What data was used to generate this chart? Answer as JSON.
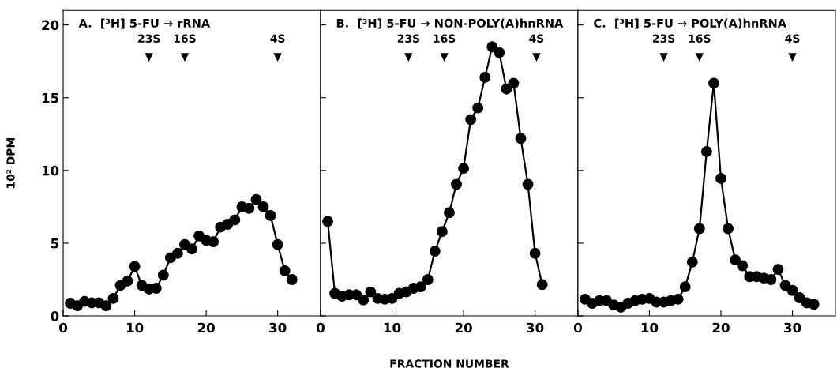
{
  "chart_data": [
    {
      "type": "line",
      "title": "A.  [³H] 5-FU → rRNA",
      "ylabel": "10² DPM",
      "tick_labels": "xy",
      "marker": "circle",
      "line_style": "solid",
      "grid": false,
      "legend": false,
      "x": [
        1,
        2,
        3,
        4,
        5,
        6,
        7,
        8,
        9,
        10,
        11,
        12,
        13,
        14,
        15,
        16,
        17,
        18,
        19,
        20,
        21,
        22,
        23,
        24,
        25,
        26,
        27,
        28,
        29,
        30,
        31,
        32
      ],
      "series": [
        {
          "color": "#000000",
          "values": [
            0.87,
            0.7,
            1.0,
            0.9,
            0.9,
            0.7,
            1.2,
            2.1,
            2.4,
            3.4,
            2.1,
            1.85,
            1.9,
            2.8,
            4.0,
            4.3,
            4.9,
            4.6,
            5.5,
            5.2,
            5.1,
            6.1,
            6.3,
            6.6,
            7.5,
            7.4,
            8.0,
            7.5,
            6.9,
            4.9,
            3.1,
            2.5
          ]
        }
      ],
      "xlim": [
        0,
        36
      ],
      "xticks": [
        0,
        10,
        20,
        30
      ],
      "ylim": [
        0,
        21
      ],
      "yticks": [
        0,
        5,
        10,
        15,
        20
      ],
      "annotations": [
        {
          "text": "23S",
          "x": 12,
          "y": 17.8
        },
        {
          "text": "16S",
          "x": 17,
          "y": 17.8
        },
        {
          "text": "4S",
          "x": 30,
          "y": 17.8
        }
      ]
    },
    {
      "type": "line",
      "title": "B.  [³H] 5-FU → NON-POLY(A)hnRNA",
      "xlabel": "FRACTION NUMBER",
      "tick_labels": "x",
      "marker": "circle",
      "line_style": "solid",
      "grid": false,
      "legend": false,
      "x": [
        1,
        2,
        3,
        4,
        5,
        6,
        7,
        8,
        9,
        10,
        11,
        12,
        13,
        14,
        15,
        16,
        17,
        18,
        19,
        20,
        21,
        22,
        23,
        24,
        25,
        26,
        27,
        28,
        29,
        30,
        31
      ],
      "series": [
        {
          "color": "#000000",
          "values": [
            6.5,
            1.55,
            1.35,
            1.45,
            1.45,
            1.1,
            1.65,
            1.2,
            1.15,
            1.2,
            1.55,
            1.65,
            1.9,
            2.0,
            2.5,
            4.45,
            5.8,
            7.1,
            9.05,
            10.15,
            13.5,
            14.3,
            16.4,
            18.5,
            18.1,
            15.6,
            16.0,
            12.2,
            9.05,
            4.3,
            2.15
          ]
        }
      ],
      "xlim": [
        0,
        36
      ],
      "xticks": [
        0,
        10,
        20,
        30
      ],
      "ylim": [
        0,
        21
      ],
      "yticks": [
        0,
        5,
        10,
        15,
        20
      ],
      "annotations": [
        {
          "text": "23S",
          "x": 12.3,
          "y": 17.8
        },
        {
          "text": "16S",
          "x": 17.3,
          "y": 17.8
        },
        {
          "text": "4S",
          "x": 30.2,
          "y": 17.8
        }
      ]
    },
    {
      "type": "line",
      "title": "C.  [³H] 5-FU → POLY(A)hnRNA",
      "tick_labels": "x",
      "marker": "circle",
      "line_style": "solid",
      "grid": false,
      "legend": false,
      "x": [
        1,
        2,
        3,
        4,
        5,
        6,
        7,
        8,
        9,
        10,
        11,
        12,
        13,
        14,
        15,
        16,
        17,
        18,
        19,
        20,
        21,
        22,
        23,
        24,
        25,
        26,
        27,
        28,
        29,
        30,
        31,
        32,
        33
      ],
      "series": [
        {
          "color": "#000000",
          "values": [
            1.15,
            0.87,
            1.05,
            1.05,
            0.75,
            0.6,
            0.87,
            1.05,
            1.15,
            1.2,
            0.95,
            0.95,
            1.05,
            1.15,
            2.0,
            3.7,
            6.0,
            11.3,
            16.0,
            9.45,
            6.0,
            3.85,
            3.45,
            2.7,
            2.7,
            2.6,
            2.5,
            3.2,
            2.1,
            1.75,
            1.25,
            0.9,
            0.8
          ]
        }
      ],
      "xlim": [
        0,
        36
      ],
      "xticks": [
        0,
        10,
        20,
        30
      ],
      "ylim": [
        0,
        21
      ],
      "yticks": [
        0,
        5,
        10,
        15,
        20
      ],
      "annotations": [
        {
          "text": "23S",
          "x": 12,
          "y": 17.8
        },
        {
          "text": "16S",
          "x": 17,
          "y": 17.8
        },
        {
          "text": "4S",
          "x": 30,
          "y": 17.8
        }
      ]
    }
  ]
}
